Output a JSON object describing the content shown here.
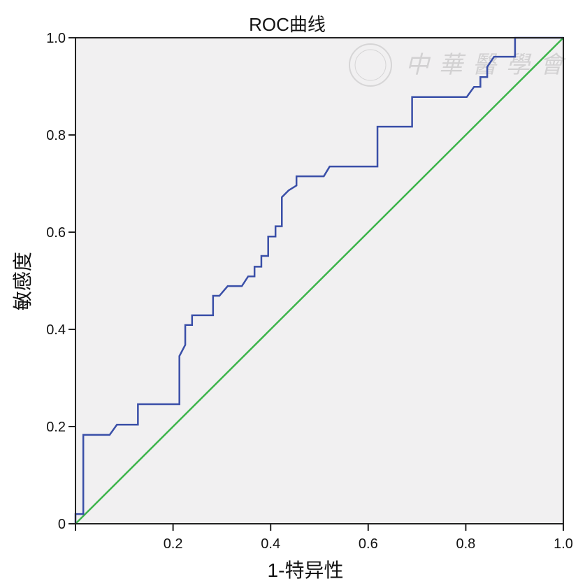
{
  "chart_data": {
    "type": "line",
    "title": "ROC曲线",
    "xlabel": "1-特异性",
    "ylabel": "敏感度",
    "xlim": [
      0,
      1
    ],
    "ylim": [
      0,
      1
    ],
    "x_ticks": [
      "0.2",
      "0.4",
      "0.6",
      "0.8",
      "1.0"
    ],
    "y_ticks": [
      "0",
      "0.2",
      "0.4",
      "0.6",
      "0.8",
      "1.0"
    ],
    "grid": false,
    "background": "#f1f0f1",
    "watermark": "中華醫學會",
    "series": [
      {
        "color": "#3a4fa8",
        "points": [
          [
            0,
            0
          ],
          [
            0,
            0.02
          ],
          [
            0.016,
            0.02
          ],
          [
            0.016,
            0.183
          ],
          [
            0.07,
            0.183
          ],
          [
            0.085,
            0.204
          ],
          [
            0.128,
            0.204
          ],
          [
            0.128,
            0.246
          ],
          [
            0.213,
            0.246
          ],
          [
            0.213,
            0.345
          ],
          [
            0.225,
            0.368
          ],
          [
            0.225,
            0.409
          ],
          [
            0.239,
            0.409
          ],
          [
            0.239,
            0.429
          ],
          [
            0.282,
            0.429
          ],
          [
            0.282,
            0.469
          ],
          [
            0.295,
            0.469
          ],
          [
            0.312,
            0.489
          ],
          [
            0.341,
            0.489
          ],
          [
            0.354,
            0.509
          ],
          [
            0.367,
            0.509
          ],
          [
            0.367,
            0.529
          ],
          [
            0.381,
            0.529
          ],
          [
            0.381,
            0.551
          ],
          [
            0.395,
            0.551
          ],
          [
            0.395,
            0.591
          ],
          [
            0.41,
            0.591
          ],
          [
            0.41,
            0.612
          ],
          [
            0.423,
            0.612
          ],
          [
            0.423,
            0.672
          ],
          [
            0.437,
            0.686
          ],
          [
            0.453,
            0.696
          ],
          [
            0.453,
            0.715
          ],
          [
            0.509,
            0.715
          ],
          [
            0.521,
            0.735
          ],
          [
            0.619,
            0.735
          ],
          [
            0.619,
            0.817
          ],
          [
            0.69,
            0.817
          ],
          [
            0.69,
            0.878
          ],
          [
            0.802,
            0.878
          ],
          [
            0.817,
            0.899
          ],
          [
            0.83,
            0.899
          ],
          [
            0.83,
            0.919
          ],
          [
            0.844,
            0.919
          ],
          [
            0.844,
            0.94
          ],
          [
            0.858,
            0.961
          ],
          [
            0.901,
            0.961
          ],
          [
            0.901,
            1
          ],
          [
            1,
            1
          ]
        ]
      },
      {
        "color": "#3cb44a",
        "points": [
          [
            0,
            0
          ],
          [
            1,
            1
          ]
        ]
      }
    ]
  }
}
